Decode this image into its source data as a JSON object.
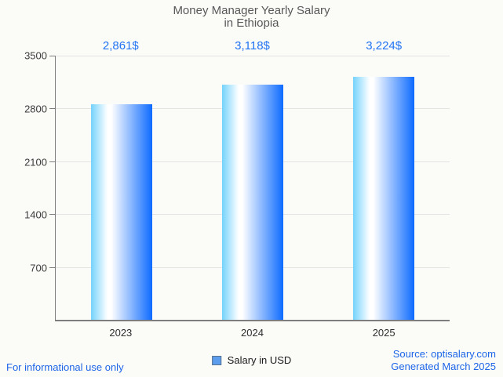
{
  "title": {
    "line1": "Money Manager Yearly Salary",
    "line2": "in Ethiopia"
  },
  "chart_data": {
    "type": "bar",
    "title": "Money Manager Yearly Salary in Ethiopia",
    "categories": [
      "2023",
      "2024",
      "2025"
    ],
    "series": [
      {
        "name": "Salary in USD",
        "values": [
          2861,
          3118,
          3224
        ],
        "value_labels": [
          "2,861$",
          "3,118$",
          "3,224$"
        ]
      }
    ],
    "xlabel": "",
    "ylabel": "",
    "ylim": [
      0,
      3500
    ],
    "yticks": [
      700,
      1400,
      2100,
      2800,
      3500
    ],
    "grid": true,
    "legend_position": "bottom",
    "bar_gradient": [
      "#74d3fc",
      "#ffffff",
      "#0d6bff"
    ]
  },
  "legend": {
    "label": "Salary in USD",
    "swatch_fill": "#5c9ded",
    "swatch_border": "#57718f"
  },
  "footer": {
    "left": "For informational use only",
    "source": "Source: optisalary.com",
    "generated": "Generated March 2025"
  },
  "colors": {
    "background": "#fbfbf8",
    "value_label": "#2274f3",
    "footer_text": "#1e66e8",
    "title_text": "#585858",
    "axis": "#7e7e7e",
    "gridline": "#e4e4e4"
  }
}
